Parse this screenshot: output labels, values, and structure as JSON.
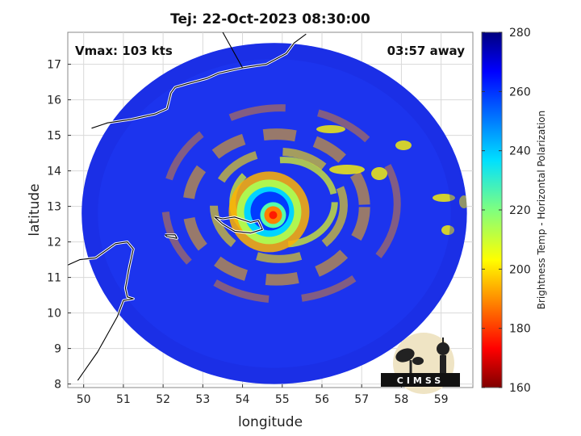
{
  "chart_data": {
    "type": "heatmap",
    "title": "Tej: 22-Oct-2023 08:30:00",
    "xlabel": "longitude",
    "ylabel": "latitude",
    "xlim": [
      49.6,
      59.8
    ],
    "ylim": [
      7.9,
      17.9
    ],
    "xticks": [
      50,
      51,
      52,
      53,
      54,
      55,
      56,
      57,
      58,
      59
    ],
    "yticks": [
      8,
      9,
      10,
      11,
      12,
      13,
      14,
      15,
      16,
      17
    ],
    "grid": true,
    "annotations": {
      "left": "Vmax: 103 kts",
      "right": "03:57 away"
    },
    "storm_center": {
      "lon": 54.75,
      "lat": 12.8
    },
    "swath": {
      "center_lon": 54.8,
      "center_lat": 12.8,
      "radius_lon": 4.85,
      "radius_lat": 4.8
    },
    "colorbar": {
      "label": "Brightness Temp - Horizontal Polarization",
      "min": 160,
      "max": 280,
      "ticks": [
        160,
        180,
        200,
        220,
        240,
        260,
        280
      ],
      "colormap": "jet"
    },
    "values_description_colors": {
      "ambient": 262,
      "rainbands": 240,
      "eyewall_max_cold": 175,
      "eye": 250
    },
    "coastlines": [
      [
        [
          50.2,
          15.2
        ],
        [
          50.6,
          15.35
        ],
        [
          51.2,
          15.45
        ],
        [
          51.8,
          15.6
        ],
        [
          52.1,
          15.75
        ],
        [
          52.2,
          16.2
        ],
        [
          52.3,
          16.35
        ],
        [
          52.6,
          16.45
        ],
        [
          53.1,
          16.6
        ],
        [
          53.4,
          16.75
        ],
        [
          54.0,
          16.9
        ],
        [
          54.6,
          17.0
        ],
        [
          55.1,
          17.3
        ],
        [
          55.3,
          17.6
        ],
        [
          55.6,
          17.85
        ]
      ],
      [
        [
          53.3,
          12.7
        ],
        [
          53.5,
          12.65
        ],
        [
          53.8,
          12.7
        ],
        [
          54.2,
          12.55
        ],
        [
          54.4,
          12.6
        ],
        [
          54.5,
          12.35
        ],
        [
          54.2,
          12.25
        ],
        [
          53.8,
          12.3
        ],
        [
          53.5,
          12.5
        ],
        [
          53.3,
          12.7
        ]
      ],
      [
        [
          52.05,
          12.2
        ],
        [
          52.3,
          12.2
        ],
        [
          52.35,
          12.1
        ],
        [
          52.1,
          12.15
        ],
        [
          52.05,
          12.2
        ]
      ],
      [
        [
          49.6,
          11.35
        ],
        [
          49.9,
          11.5
        ],
        [
          50.3,
          11.55
        ],
        [
          50.8,
          11.95
        ],
        [
          51.1,
          12.0
        ],
        [
          51.25,
          11.8
        ],
        [
          51.15,
          11.3
        ],
        [
          51.05,
          10.7
        ],
        [
          51.1,
          10.45
        ],
        [
          51.25,
          10.4
        ],
        [
          51.0,
          10.35
        ],
        [
          50.85,
          9.9
        ],
        [
          50.6,
          9.4
        ],
        [
          50.35,
          8.9
        ],
        [
          50.1,
          8.5
        ],
        [
          49.85,
          8.1
        ]
      ]
    ]
  },
  "logo": {
    "text": "CIMSS"
  }
}
